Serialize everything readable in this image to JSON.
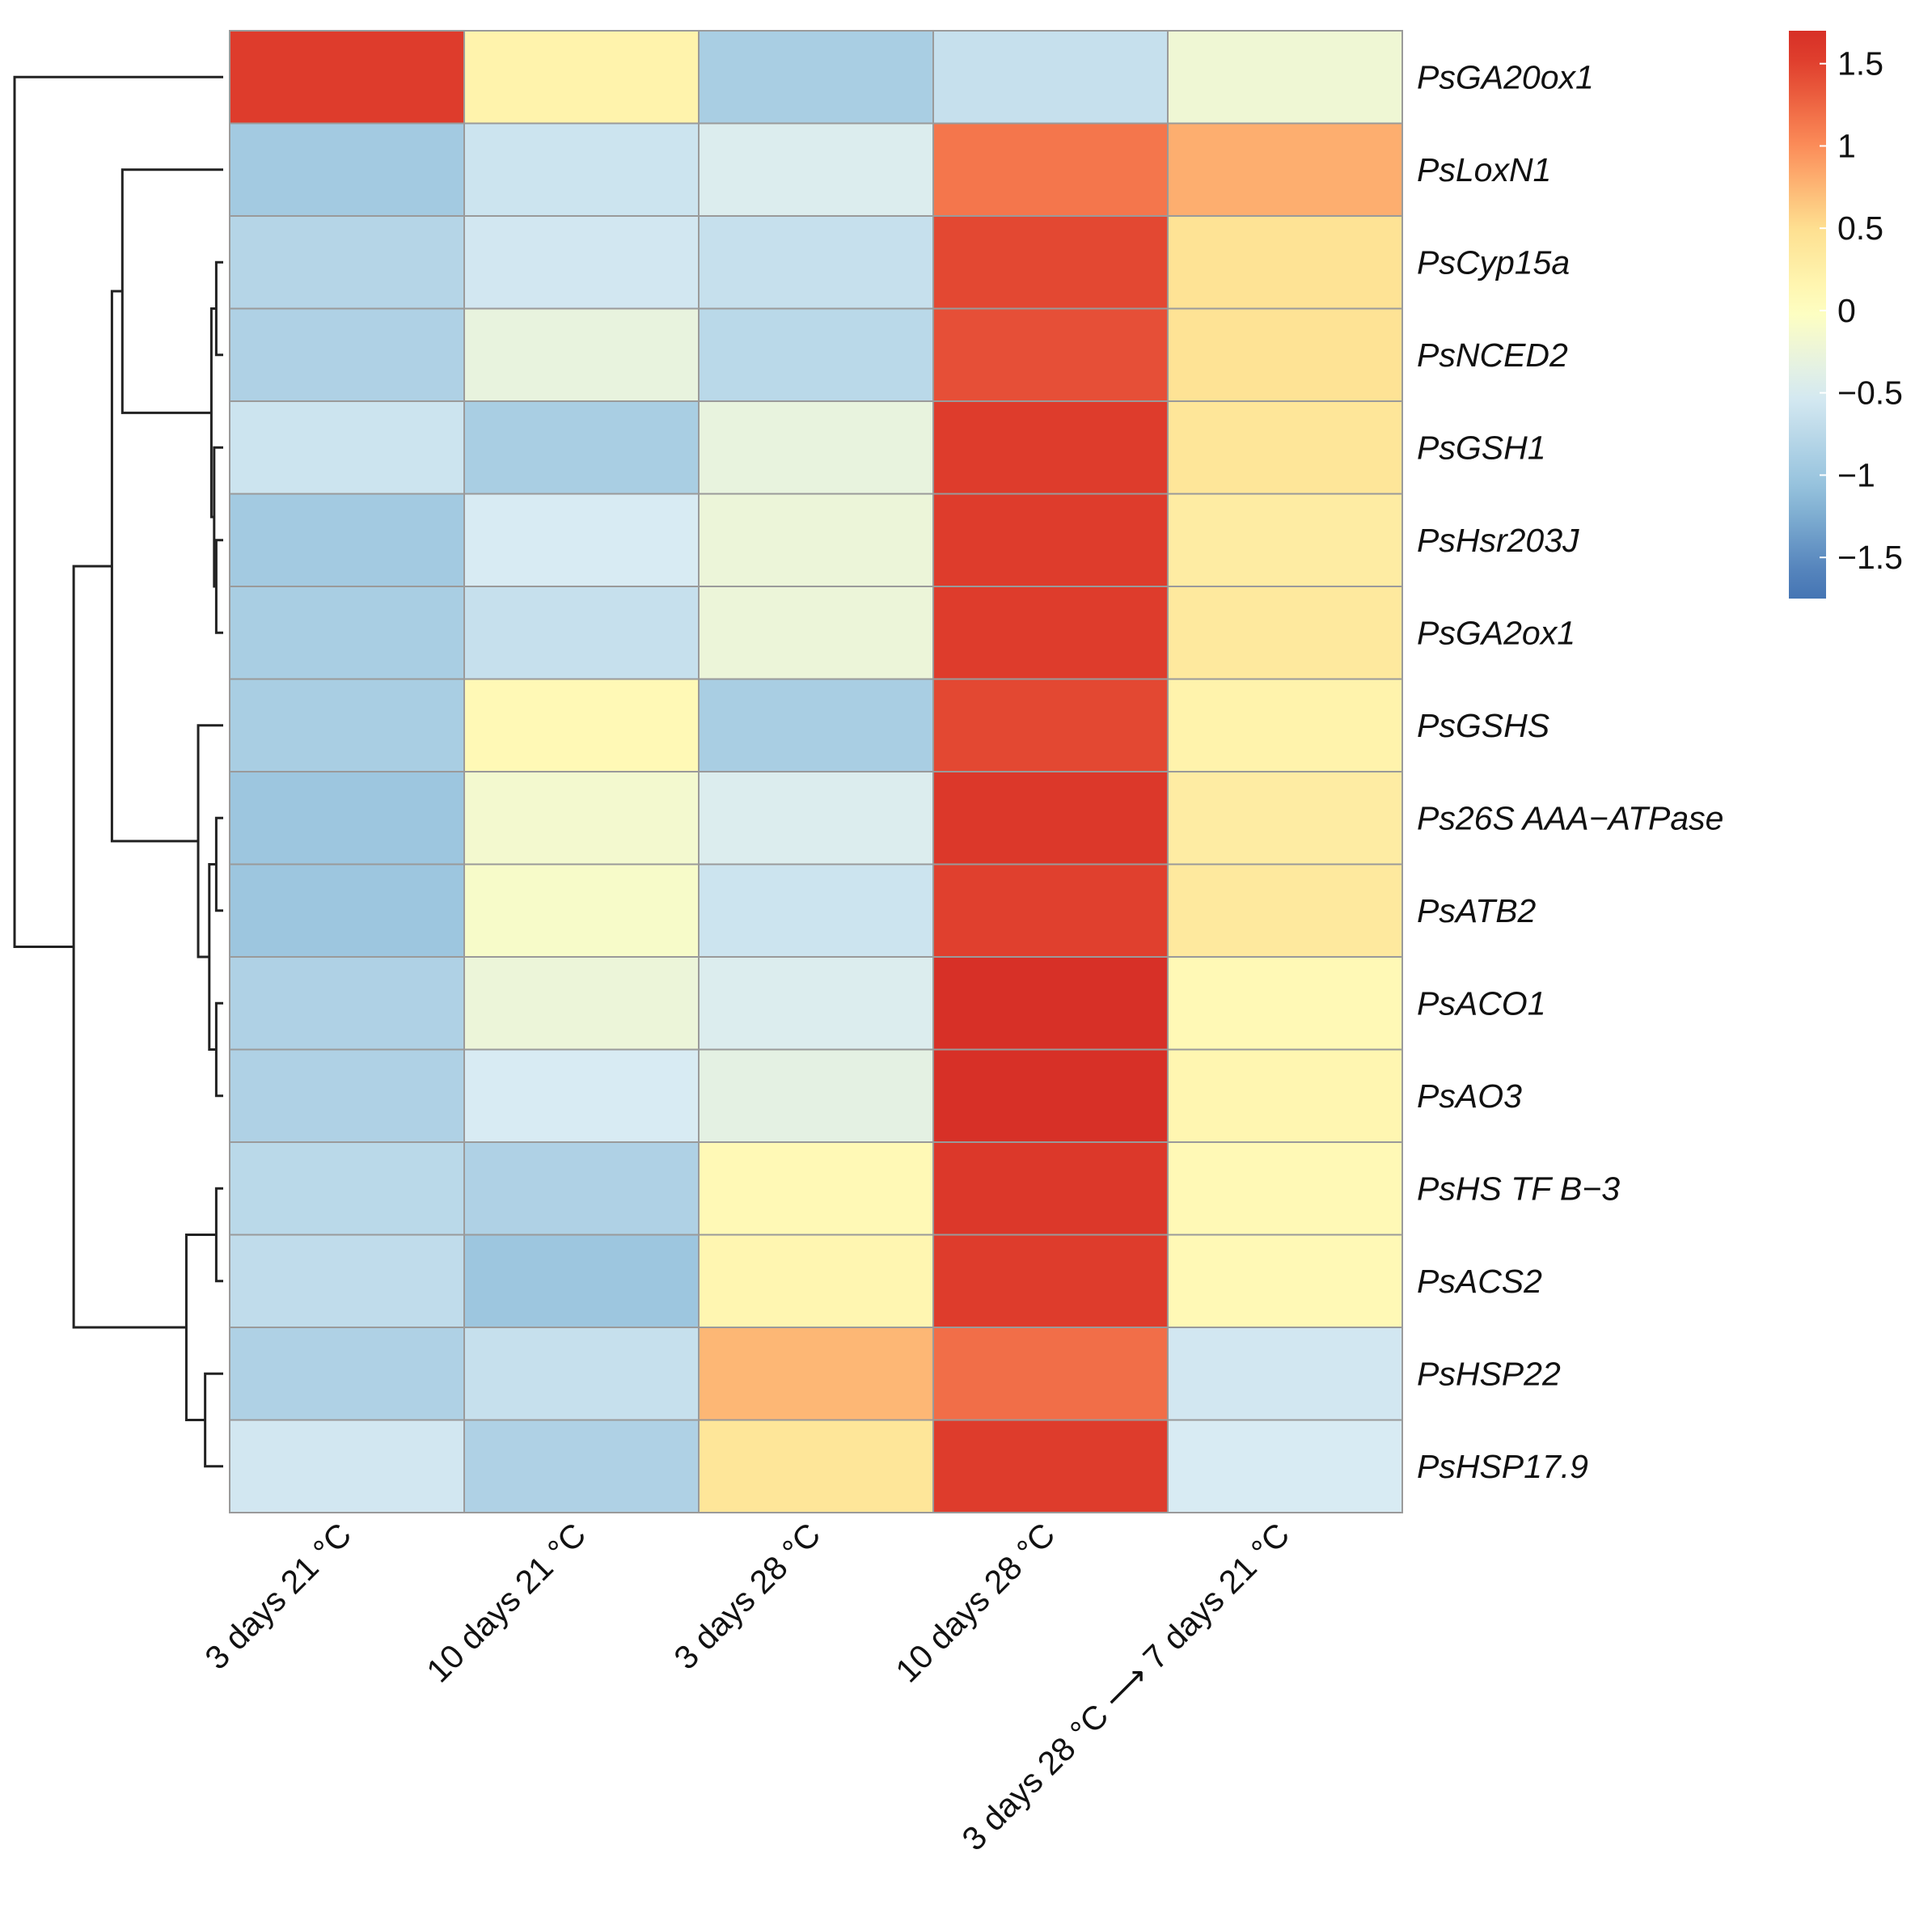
{
  "chart_data": {
    "type": "heatmap",
    "title": "",
    "xlabel": "",
    "ylabel": "",
    "columns": [
      "3 days 21 °C",
      "10 days 21 °C",
      "3 days 28 °C",
      "10 days 28 °C",
      "3 days 28 °C ⟶ 7 days 21 °C"
    ],
    "rows": [
      "PsGA20ox1",
      "PsLoxN1",
      "PsCyp15a",
      "PsNCED2",
      "PsGSH1",
      "PsHsr203J",
      "PsGA2ox1",
      "PsGSHS",
      "Ps26S AAA−ATPase",
      "PsATB2",
      "PsACO1",
      "PsAO3",
      "PsHS TF B−3",
      "PsACS2",
      "PsHSP22",
      "PsHSP17.9"
    ],
    "values": [
      [
        1.55,
        0.2,
        -0.9,
        -0.65,
        -0.2
      ],
      [
        -0.95,
        -0.6,
        -0.45,
        1.15,
        0.8
      ],
      [
        -0.8,
        -0.55,
        -0.65,
        1.45,
        0.45
      ],
      [
        -0.85,
        -0.3,
        -0.75,
        1.4,
        0.45
      ],
      [
        -0.6,
        -0.9,
        -0.3,
        1.55,
        0.4
      ],
      [
        -0.95,
        -0.5,
        -0.25,
        1.55,
        0.3
      ],
      [
        -0.9,
        -0.65,
        -0.25,
        1.55,
        0.35
      ],
      [
        -0.9,
        0.1,
        -0.9,
        1.45,
        0.2
      ],
      [
        -1.0,
        -0.15,
        -0.45,
        1.6,
        0.3
      ],
      [
        -1.0,
        -0.1,
        -0.6,
        1.5,
        0.35
      ],
      [
        -0.85,
        -0.25,
        -0.45,
        1.75,
        0.1
      ],
      [
        -0.85,
        -0.5,
        -0.35,
        1.75,
        0.15
      ],
      [
        -0.75,
        -0.85,
        0.1,
        1.6,
        0.1
      ],
      [
        -0.7,
        -1.0,
        0.15,
        1.55,
        0.1
      ],
      [
        -0.85,
        -0.65,
        0.75,
        1.2,
        -0.55
      ],
      [
        -0.55,
        -0.85,
        0.4,
        1.55,
        -0.5
      ]
    ],
    "color_scale": {
      "min": -1.75,
      "max": 1.7,
      "stops": [
        {
          "value": -1.7,
          "color": "#4575b4"
        },
        {
          "value": -1.1,
          "color": "#91bfdb"
        },
        {
          "value": -0.5,
          "color": "#d8ebf3"
        },
        {
          "value": 0.0,
          "color": "#ffffbf"
        },
        {
          "value": 0.5,
          "color": "#fee090"
        },
        {
          "value": 1.0,
          "color": "#fc8d59"
        },
        {
          "value": 1.5,
          "color": "#e0402e"
        },
        {
          "value": 1.7,
          "color": "#d73027"
        }
      ]
    },
    "legend": {
      "ticks": [
        1.5,
        1,
        0.5,
        0,
        -0.5,
        -1,
        -1.5
      ],
      "tick_labels": [
        "1.5",
        "1",
        "0.5",
        "0",
        "−0.5",
        "−1",
        "−1.5"
      ],
      "placement": "top-right"
    },
    "row_dendrogram": true,
    "grid": true
  }
}
